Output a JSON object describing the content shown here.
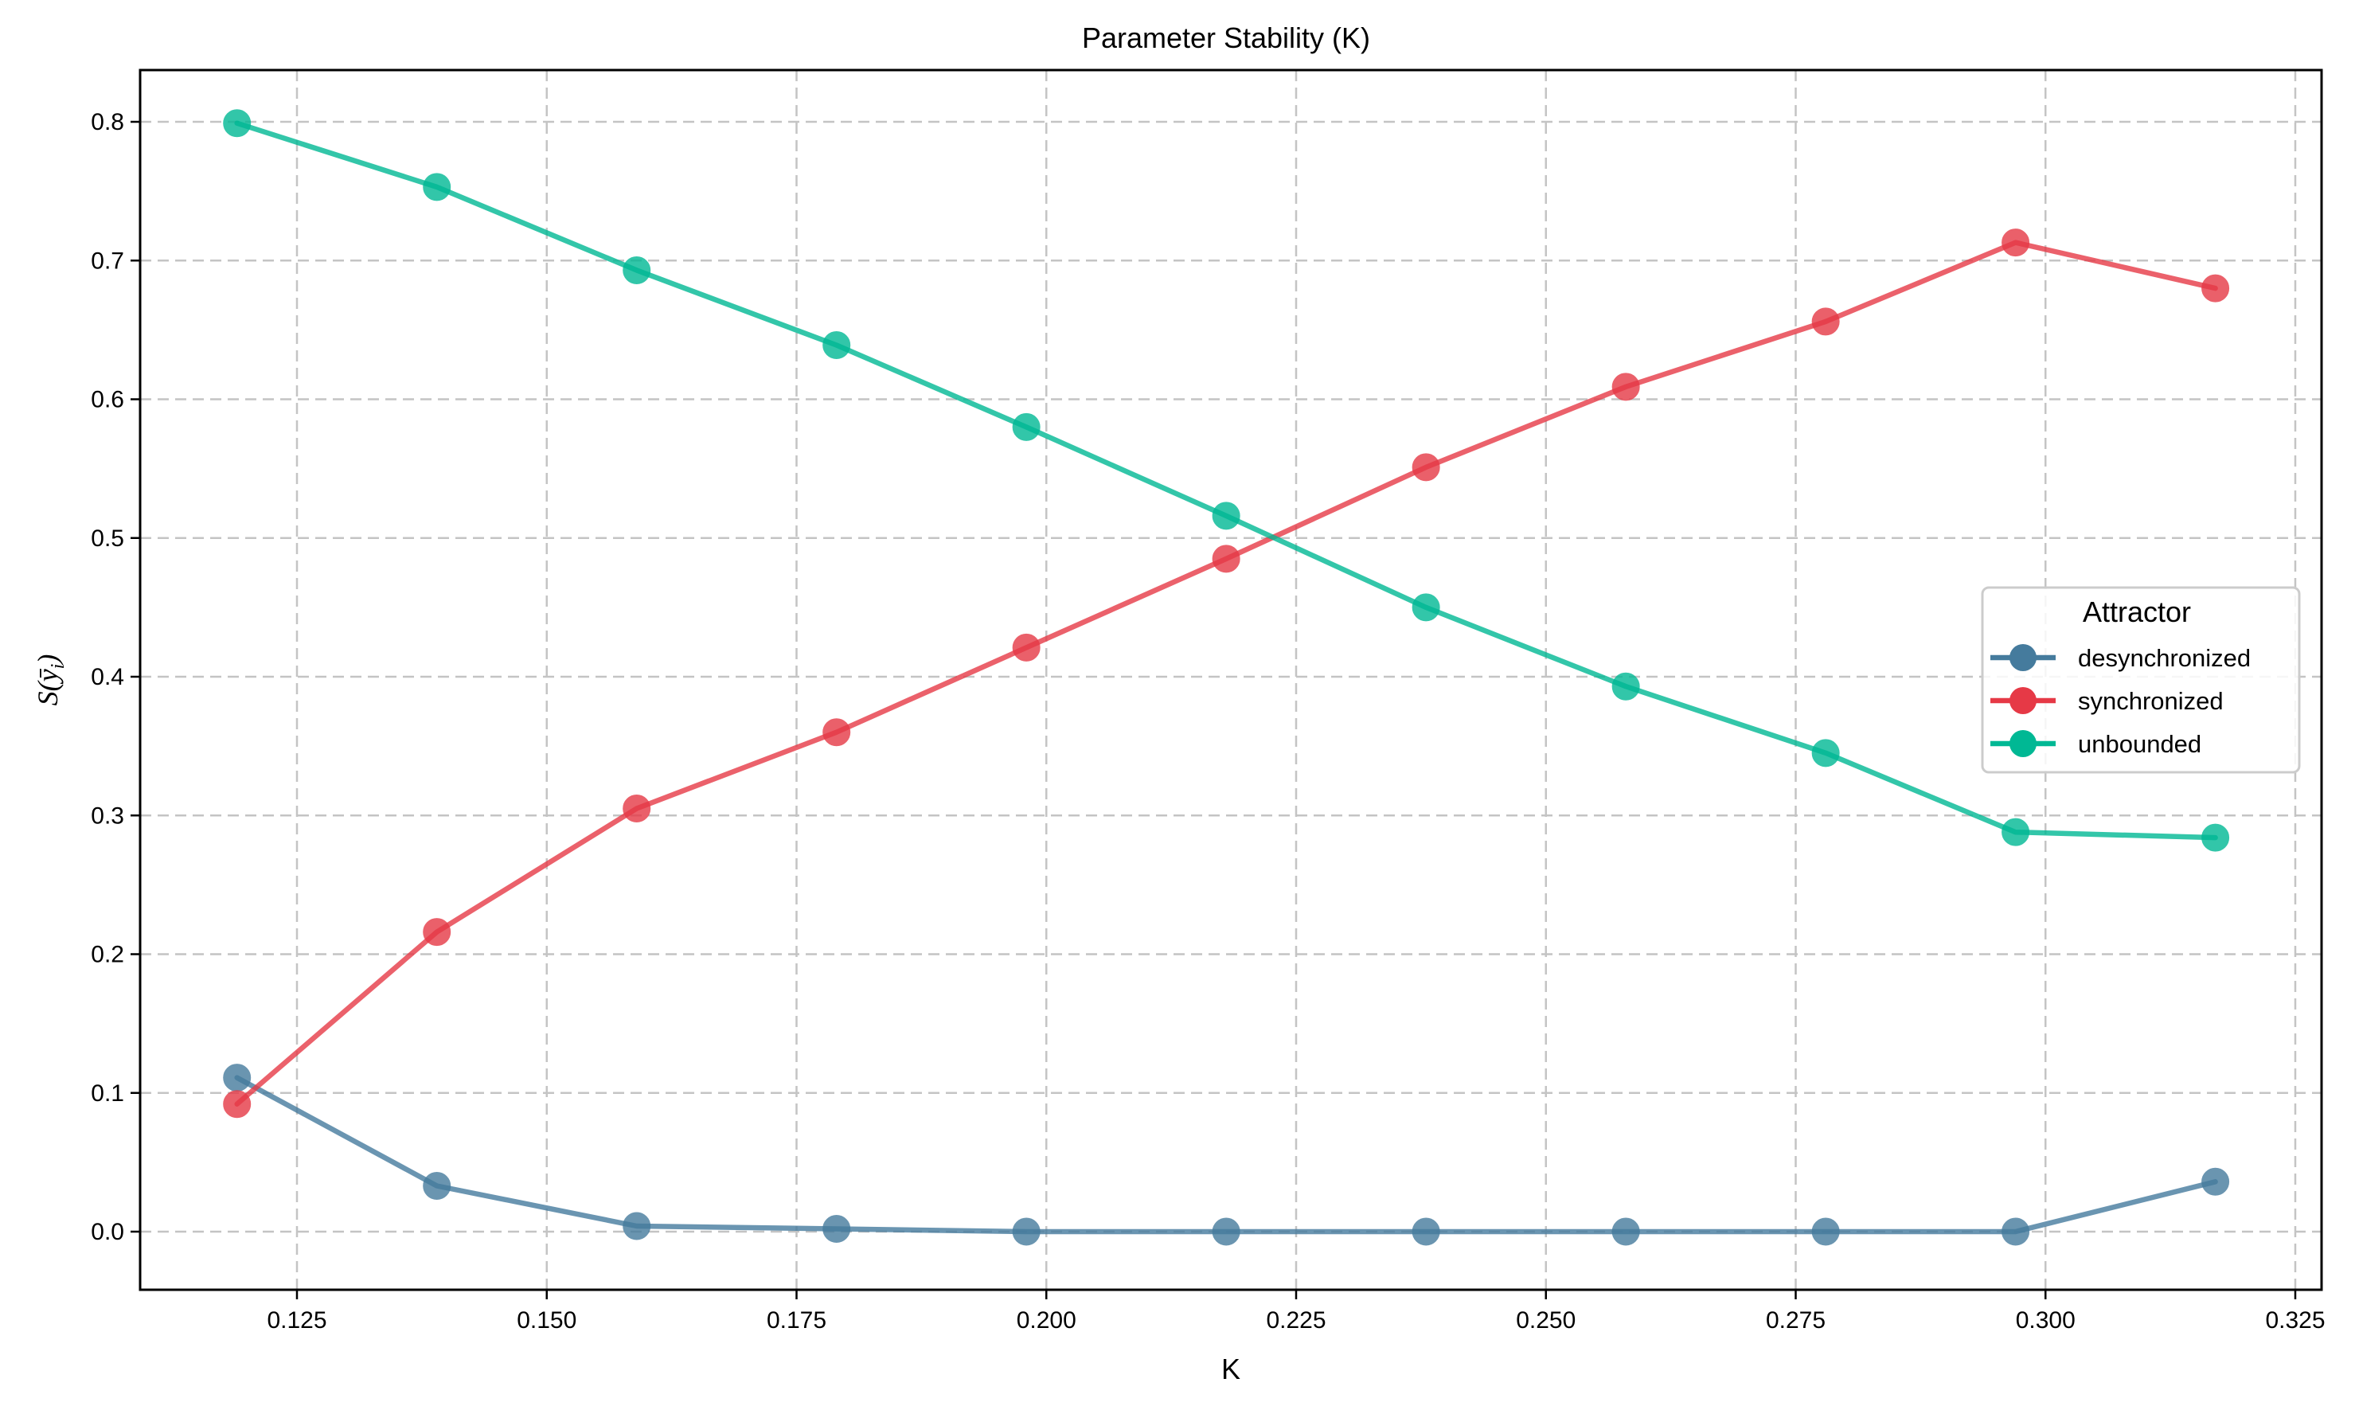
{
  "chart_data": {
    "type": "line",
    "title": "Parameter Stability (K)",
    "xlabel": "K",
    "ylabel": "S(ȳᵢ)",
    "xlim": [
      0.109,
      0.326
    ],
    "ylim": [
      -0.04,
      0.84
    ],
    "grid": true,
    "legend_position": "center right",
    "legend_title": "Attractor",
    "x_ticks": [
      "0.125",
      "0.150",
      "0.175",
      "0.200",
      "0.225",
      "0.250",
      "0.275",
      "0.300",
      "0.325"
    ],
    "y_ticks": [
      "0.0",
      "0.1",
      "0.2",
      "0.3",
      "0.4",
      "0.5",
      "0.6",
      "0.7",
      "0.8"
    ],
    "x": [
      0.119,
      0.139,
      0.159,
      0.179,
      0.198,
      0.218,
      0.238,
      0.258,
      0.278,
      0.297,
      0.317
    ],
    "series": [
      {
        "name": "desynchronized",
        "color": "#457b9d",
        "values": [
          0.111,
          0.033,
          0.004,
          0.002,
          0.0,
          0.0,
          0.0,
          0.0,
          0.0,
          0.0,
          0.036
        ]
      },
      {
        "name": "synchronized",
        "color": "#e63946",
        "values": [
          0.092,
          0.216,
          0.305,
          0.36,
          0.421,
          0.485,
          0.551,
          0.609,
          0.656,
          0.713,
          0.68
        ]
      },
      {
        "name": "unbounded",
        "color": "#00b894",
        "values": [
          0.799,
          0.753,
          0.693,
          0.639,
          0.58,
          0.516,
          0.45,
          0.393,
          0.345,
          0.288,
          0.284
        ]
      }
    ]
  }
}
